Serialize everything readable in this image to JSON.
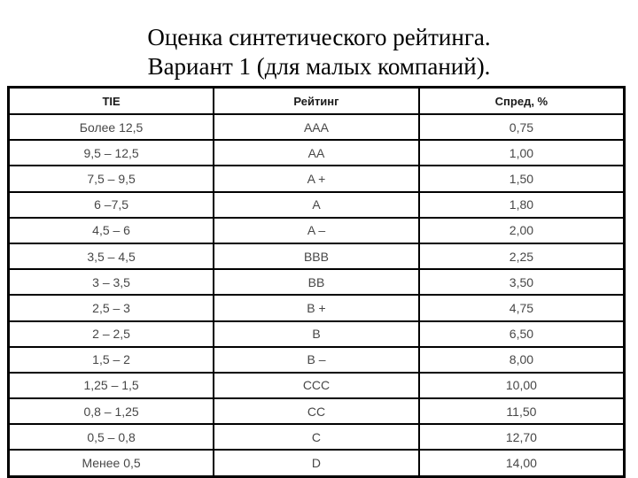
{
  "title": {
    "line1": "Оценка синтетического рейтинга.",
    "line2": "Вариант 1 (для малых компаний)."
  },
  "chart_data": {
    "type": "table",
    "columns": [
      "TIE",
      "Рейтинг",
      "Спред, %"
    ],
    "rows": [
      [
        "Более 12,5",
        "AAA",
        "0,75"
      ],
      [
        "9,5 – 12,5",
        "AA",
        "1,00"
      ],
      [
        "7,5 – 9,5",
        "A +",
        "1,50"
      ],
      [
        "6 –7,5",
        "A",
        "1,80"
      ],
      [
        "4,5 – 6",
        "A –",
        "2,00"
      ],
      [
        "3,5 – 4,5",
        "BBB",
        "2,25"
      ],
      [
        "3 – 3,5",
        "BB",
        "3,50"
      ],
      [
        "2,5 – 3",
        "B +",
        "4,75"
      ],
      [
        "2 – 2,5",
        "B",
        "6,50"
      ],
      [
        "1,5 – 2",
        "B –",
        "8,00"
      ],
      [
        "1,25 – 1,5",
        "CCC",
        "10,00"
      ],
      [
        "0,8 – 1,25",
        "CC",
        "11,50"
      ],
      [
        "0,5 – 0,8",
        "C",
        "12,70"
      ],
      [
        "Менее 0,5",
        "D",
        "14,00"
      ]
    ]
  },
  "colors": {
    "background": "#ffffff",
    "border": "#000000",
    "title_text": "#000000",
    "header_text": "#1a1a1a",
    "cell_text": "#474747"
  }
}
